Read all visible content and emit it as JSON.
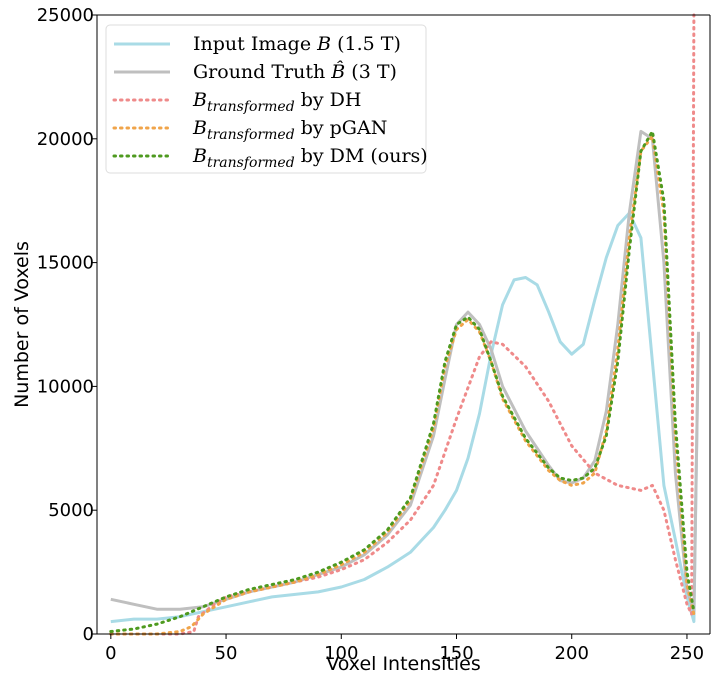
{
  "chart_data": {
    "type": "line",
    "xlabel": "Voxel Intensities",
    "ylabel": "Number of Voxels",
    "xlim": [
      -6,
      260
    ],
    "ylim": [
      0,
      25000
    ],
    "xticks": [
      "0",
      "50",
      "100",
      "150",
      "200",
      "250"
    ],
    "yticks": [
      "0",
      "5000",
      "10000",
      "15000",
      "20000",
      "25000"
    ],
    "grid": false,
    "legend_position": "top-left",
    "series": [
      {
        "name_parts": [
          "Input Image ",
          "B",
          " (1.5 T)"
        ],
        "color": "#a9dbe6",
        "style": "solid",
        "x": [
          0,
          10,
          20,
          30,
          40,
          50,
          60,
          70,
          80,
          90,
          100,
          110,
          120,
          125,
          130,
          135,
          140,
          145,
          150,
          155,
          160,
          165,
          170,
          175,
          180,
          185,
          190,
          195,
          200,
          205,
          210,
          215,
          220,
          225,
          230,
          235,
          240,
          245,
          250,
          253,
          255
        ],
        "y": [
          500,
          600,
          600,
          700,
          900,
          1100,
          1300,
          1500,
          1600,
          1700,
          1900,
          2200,
          2700,
          3000,
          3300,
          3800,
          4300,
          5000,
          5800,
          7100,
          8900,
          11300,
          13300,
          14300,
          14400,
          14100,
          13000,
          11800,
          11300,
          11700,
          13500,
          15200,
          16500,
          17000,
          16000,
          11000,
          6000,
          3800,
          1500,
          500,
          12200
        ]
      },
      {
        "name_parts": [
          "Ground Truth  ",
          "B̂",
          " (3 T)"
        ],
        "color": "#bfbfbf",
        "style": "solid",
        "x": [
          0,
          10,
          20,
          30,
          40,
          50,
          60,
          70,
          80,
          90,
          100,
          110,
          120,
          130,
          140,
          145,
          150,
          155,
          160,
          165,
          170,
          180,
          190,
          195,
          200,
          205,
          210,
          215,
          220,
          225,
          230,
          235,
          240,
          245,
          250,
          253,
          255
        ],
        "y": [
          1400,
          1200,
          1000,
          1000,
          1100,
          1400,
          1700,
          1900,
          2100,
          2400,
          2700,
          3200,
          4000,
          5200,
          8000,
          10300,
          12500,
          13000,
          12500,
          11500,
          10000,
          8200,
          6800,
          6200,
          6100,
          6300,
          7000,
          9000,
          12500,
          17000,
          20300,
          20000,
          15000,
          6500,
          1800,
          900,
          12200
        ]
      },
      {
        "name_parts": [
          "B",
          "transformed",
          " by DH"
        ],
        "color": "#ef8a8a",
        "style": "dotted",
        "x": [
          0,
          10,
          20,
          30,
          36,
          38,
          45,
          50,
          60,
          70,
          80,
          90,
          100,
          110,
          120,
          130,
          140,
          150,
          160,
          165,
          170,
          180,
          190,
          200,
          210,
          220,
          225,
          230,
          235,
          240,
          245,
          250,
          252,
          253
        ],
        "y": [
          0,
          0,
          0,
          0,
          100,
          700,
          1200,
          1500,
          1700,
          1900,
          2100,
          2300,
          2600,
          3000,
          3700,
          4600,
          6000,
          8700,
          11200,
          11800,
          11700,
          10800,
          9400,
          7600,
          6500,
          6000,
          5900,
          5800,
          6000,
          5000,
          3000,
          1200,
          800,
          25000
        ]
      },
      {
        "name_parts": [
          "B",
          "transformed",
          " by pGAN"
        ],
        "color": "#f0a44a",
        "style": "dotted",
        "x": [
          0,
          10,
          20,
          30,
          35,
          40,
          50,
          60,
          70,
          80,
          90,
          100,
          110,
          120,
          130,
          140,
          145,
          150,
          155,
          160,
          165,
          170,
          180,
          190,
          195,
          200,
          205,
          210,
          215,
          220,
          225,
          230,
          235,
          240,
          245,
          250,
          253
        ],
        "y": [
          0,
          0,
          0,
          100,
          300,
          800,
          1400,
          1700,
          1900,
          2100,
          2400,
          2800,
          3300,
          4100,
          5400,
          8300,
          10800,
          12300,
          12700,
          12200,
          11000,
          9500,
          7800,
          6600,
          6200,
          6000,
          6100,
          6500,
          8200,
          11500,
          16000,
          19500,
          20100,
          17000,
          8000,
          2000,
          800
        ]
      },
      {
        "name_parts": [
          "B",
          "transformed",
          " by DM (ours)"
        ],
        "color": "#4e9a1f",
        "style": "dotted",
        "x": [
          0,
          10,
          20,
          30,
          40,
          50,
          60,
          70,
          80,
          90,
          100,
          110,
          120,
          130,
          140,
          145,
          150,
          155,
          160,
          165,
          170,
          180,
          190,
          195,
          200,
          205,
          210,
          215,
          220,
          225,
          230,
          235,
          240,
          245,
          250,
          253
        ],
        "y": [
          100,
          200,
          400,
          700,
          1100,
          1500,
          1800,
          2000,
          2200,
          2500,
          2900,
          3400,
          4200,
          5500,
          8500,
          11000,
          12500,
          12800,
          12300,
          11000,
          9600,
          7900,
          6700,
          6300,
          6200,
          6300,
          6700,
          8000,
          11000,
          15500,
          19500,
          20300,
          17500,
          8500,
          2500,
          900
        ]
      }
    ]
  }
}
